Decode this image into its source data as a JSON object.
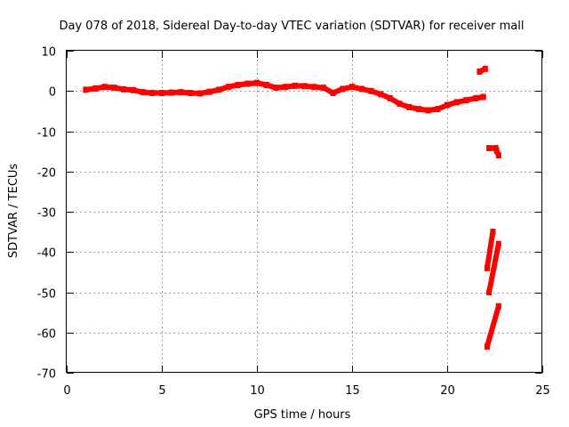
{
  "chart_data": {
    "type": "scatter",
    "title": "Day 078 of 2018, Sidereal Day-to-day VTEC variation (SDTVAR) for receiver mall",
    "xlabel": "GPS time / hours",
    "ylabel": "SDTVAR / TECUs",
    "xlim": [
      0,
      25
    ],
    "ylim": [
      -70,
      10
    ],
    "xticks": [
      0,
      5,
      10,
      15,
      20,
      25
    ],
    "yticks": [
      10,
      0,
      -10,
      -20,
      -30,
      -40,
      -50,
      -60,
      -70
    ],
    "grid": true,
    "color": "#ff0000",
    "series": [
      {
        "name": "main-trace",
        "points": [
          [
            1.0,
            0.3
          ],
          [
            1.5,
            0.6
          ],
          [
            2.0,
            1.0
          ],
          [
            2.5,
            0.8
          ],
          [
            3.0,
            0.4
          ],
          [
            3.5,
            0.2
          ],
          [
            4.0,
            -0.3
          ],
          [
            4.5,
            -0.5
          ],
          [
            5.0,
            -0.5
          ],
          [
            5.5,
            -0.4
          ],
          [
            6.0,
            -0.3
          ],
          [
            6.5,
            -0.5
          ],
          [
            7.0,
            -0.6
          ],
          [
            7.5,
            -0.2
          ],
          [
            8.0,
            0.3
          ],
          [
            8.5,
            1.0
          ],
          [
            9.0,
            1.5
          ],
          [
            9.5,
            1.8
          ],
          [
            10.0,
            2.0
          ],
          [
            10.5,
            1.5
          ],
          [
            11.0,
            0.8
          ],
          [
            11.5,
            1.0
          ],
          [
            12.0,
            1.3
          ],
          [
            12.5,
            1.2
          ],
          [
            13.0,
            1.0
          ],
          [
            13.5,
            0.8
          ],
          [
            14.0,
            -0.5
          ],
          [
            14.5,
            0.5
          ],
          [
            15.0,
            1.0
          ],
          [
            15.5,
            0.5
          ],
          [
            16.0,
            0.0
          ],
          [
            16.5,
            -0.8
          ],
          [
            17.0,
            -1.8
          ],
          [
            17.5,
            -3.2
          ],
          [
            18.0,
            -4.0
          ],
          [
            18.5,
            -4.5
          ],
          [
            19.0,
            -4.8
          ],
          [
            19.5,
            -4.5
          ],
          [
            20.0,
            -3.5
          ],
          [
            20.5,
            -2.8
          ],
          [
            21.0,
            -2.3
          ],
          [
            21.5,
            -1.8
          ],
          [
            21.9,
            -1.5
          ]
        ]
      },
      {
        "name": "segment-a",
        "points": [
          [
            21.7,
            4.8
          ],
          [
            22.0,
            5.5
          ]
        ]
      },
      {
        "name": "segment-b",
        "points": [
          [
            22.2,
            -14.2
          ],
          [
            22.55,
            -14.2
          ],
          [
            22.6,
            -14.8
          ],
          [
            22.7,
            -16.0
          ]
        ]
      },
      {
        "name": "segment-c",
        "points": [
          [
            22.1,
            -44.0
          ],
          [
            22.4,
            -35.0
          ]
        ]
      },
      {
        "name": "segment-d",
        "points": [
          [
            22.2,
            -50.0
          ],
          [
            22.7,
            -38.0
          ]
        ]
      },
      {
        "name": "segment-e",
        "points": [
          [
            22.1,
            -63.5
          ],
          [
            22.7,
            -53.5
          ]
        ]
      }
    ]
  }
}
